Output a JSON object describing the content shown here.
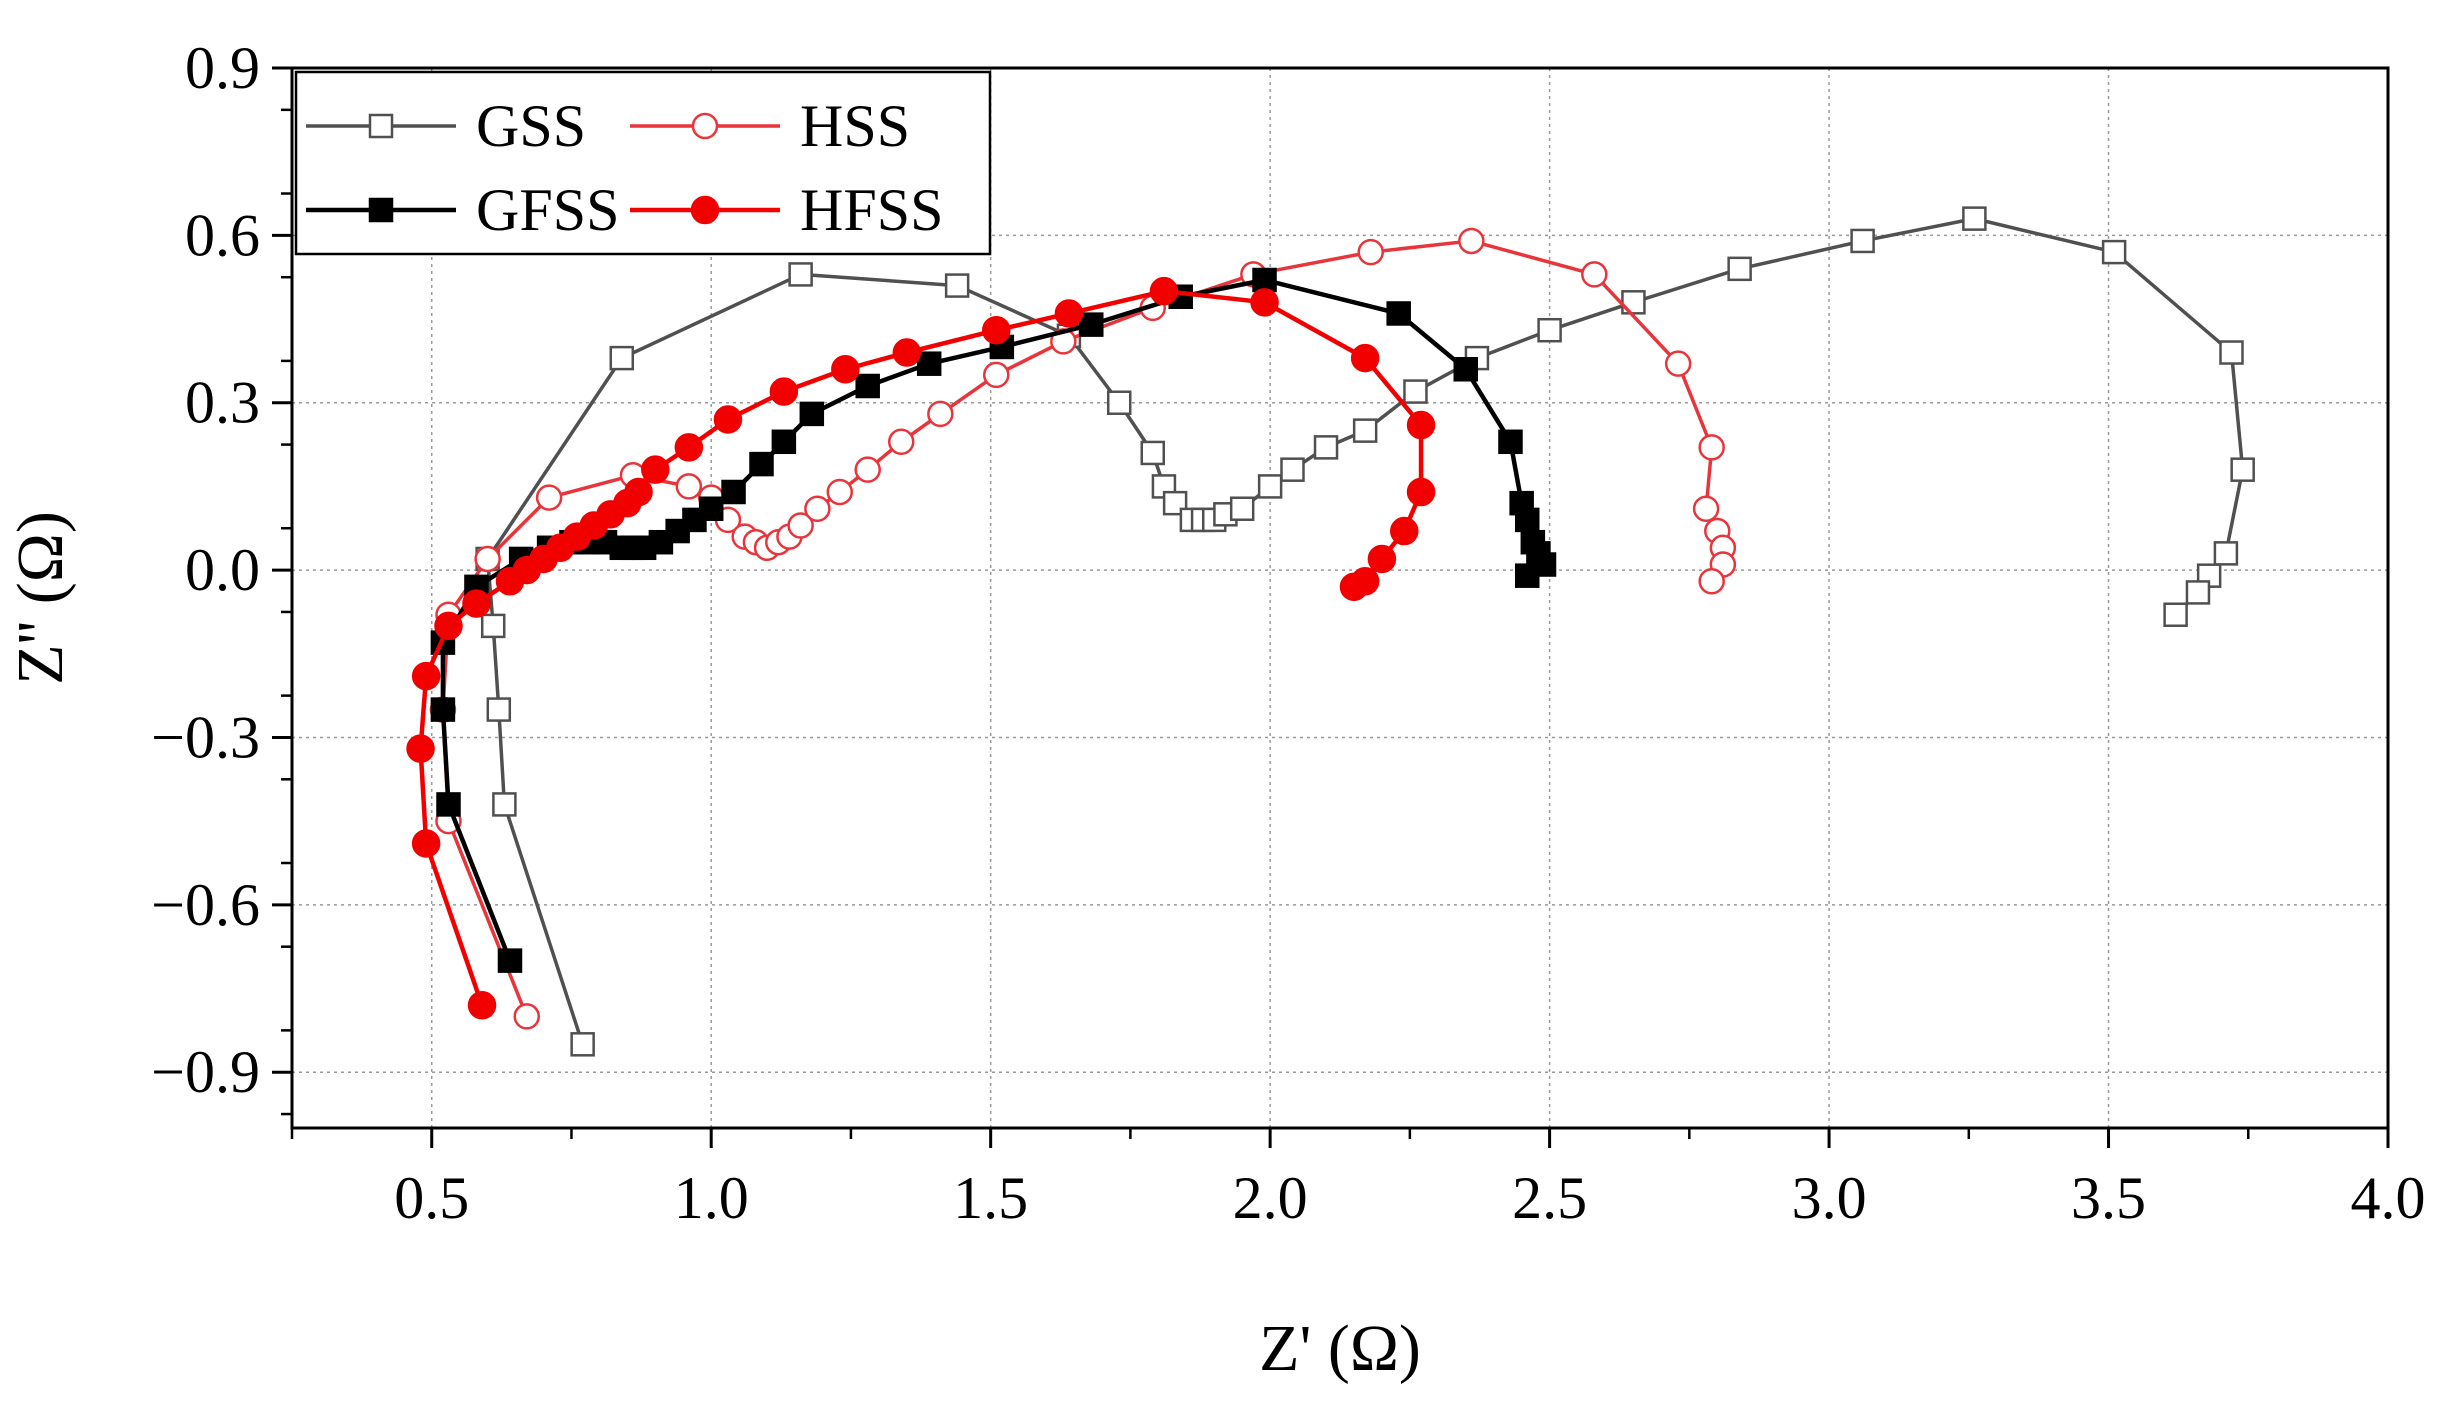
{
  "chart_data": {
    "type": "line",
    "title": "",
    "xlabel": "Z' (Ω)",
    "ylabel": "Z'' (Ω)",
    "xlim": [
      0.25,
      4.0
    ],
    "ylim": [
      -1.0,
      0.9
    ],
    "x_ticks": [
      0.5,
      1.0,
      1.5,
      2.0,
      2.5,
      3.0,
      3.5,
      4.0
    ],
    "x_tick_labels": [
      "0.5",
      "1.0",
      "1.5",
      "2.0",
      "2.5",
      "3.0",
      "3.5",
      "4.0"
    ],
    "y_ticks": [
      0.9,
      0.6,
      0.3,
      0.0,
      -0.3,
      -0.6,
      -0.9
    ],
    "y_tick_labels": [
      "0.9",
      "0.6",
      "0.3",
      "0.0",
      "−0.3",
      "−0.6",
      "−0.9"
    ],
    "grid": true,
    "legend_position": "top-left",
    "series": [
      {
        "name": "GSS",
        "color": "#505050",
        "marker": "square-open",
        "x": [
          0.77,
          0.63,
          0.62,
          0.61,
          0.6,
          0.84,
          1.16,
          1.44,
          1.64,
          1.73,
          1.79,
          1.81,
          1.83,
          1.86,
          1.88,
          1.9,
          1.92,
          1.95,
          2.0,
          2.04,
          2.1,
          2.17,
          2.26,
          2.37,
          2.5,
          2.65,
          2.84,
          3.06,
          3.26,
          3.51,
          3.72,
          3.74,
          3.71,
          3.68,
          3.66,
          3.62
        ],
        "y": [
          -0.85,
          -0.42,
          -0.25,
          -0.1,
          0.02,
          0.38,
          0.53,
          0.51,
          0.42,
          0.3,
          0.21,
          0.15,
          0.12,
          0.09,
          0.09,
          0.09,
          0.1,
          0.11,
          0.15,
          0.18,
          0.22,
          0.25,
          0.32,
          0.38,
          0.43,
          0.48,
          0.54,
          0.59,
          0.63,
          0.57,
          0.39,
          0.18,
          0.03,
          -0.01,
          -0.04,
          -0.08
        ]
      },
      {
        "name": "HSS",
        "color": "#e8343b",
        "marker": "circle-open",
        "x": [
          0.67,
          0.53,
          0.52,
          0.53,
          0.6,
          0.71,
          0.86,
          0.96,
          1.0,
          1.03,
          1.06,
          1.08,
          1.1,
          1.12,
          1.14,
          1.16,
          1.19,
          1.23,
          1.28,
          1.34,
          1.41,
          1.51,
          1.63,
          1.79,
          1.97,
          2.18,
          2.36,
          2.58,
          2.73,
          2.79,
          2.78,
          2.8,
          2.81,
          2.81,
          2.79
        ],
        "y": [
          -0.8,
          -0.45,
          -0.25,
          -0.08,
          0.02,
          0.13,
          0.17,
          0.15,
          0.13,
          0.09,
          0.06,
          0.05,
          0.04,
          0.05,
          0.06,
          0.08,
          0.11,
          0.14,
          0.18,
          0.23,
          0.28,
          0.35,
          0.41,
          0.47,
          0.53,
          0.57,
          0.59,
          0.53,
          0.37,
          0.22,
          0.11,
          0.07,
          0.04,
          0.01,
          -0.02
        ]
      },
      {
        "name": "GFSS",
        "color": "#000000",
        "marker": "square-filled",
        "x": [
          0.64,
          0.53,
          0.52,
          0.52,
          0.58,
          0.66,
          0.71,
          0.75,
          0.78,
          0.81,
          0.84,
          0.86,
          0.88,
          0.91,
          0.94,
          0.97,
          1.0,
          1.04,
          1.09,
          1.13,
          1.18,
          1.28,
          1.39,
          1.52,
          1.68,
          1.84,
          1.99,
          2.23,
          2.35,
          2.43,
          2.45,
          2.46,
          2.47,
          2.48,
          2.49,
          2.46
        ],
        "y": [
          -0.7,
          -0.42,
          -0.25,
          -0.13,
          -0.03,
          0.02,
          0.04,
          0.05,
          0.05,
          0.05,
          0.04,
          0.04,
          0.04,
          0.05,
          0.07,
          0.09,
          0.11,
          0.14,
          0.19,
          0.23,
          0.28,
          0.33,
          0.37,
          0.4,
          0.44,
          0.49,
          0.52,
          0.46,
          0.36,
          0.23,
          0.12,
          0.09,
          0.05,
          0.03,
          0.01,
          -0.01
        ]
      },
      {
        "name": "HFSS",
        "color": "#f20000",
        "marker": "circle-filled",
        "x": [
          0.59,
          0.49,
          0.48,
          0.49,
          0.53,
          0.58,
          0.64,
          0.67,
          0.7,
          0.73,
          0.76,
          0.79,
          0.82,
          0.85,
          0.87,
          0.9,
          0.96,
          1.03,
          1.13,
          1.24,
          1.35,
          1.51,
          1.64,
          1.81,
          1.99,
          2.17,
          2.27,
          2.27,
          2.24,
          2.2,
          2.17,
          2.15
        ],
        "y": [
          -0.78,
          -0.49,
          -0.32,
          -0.19,
          -0.1,
          -0.06,
          -0.02,
          0.0,
          0.02,
          0.04,
          0.06,
          0.08,
          0.1,
          0.12,
          0.14,
          0.18,
          0.22,
          0.27,
          0.32,
          0.36,
          0.39,
          0.43,
          0.46,
          0.5,
          0.48,
          0.38,
          0.26,
          0.14,
          0.07,
          0.02,
          -0.02,
          -0.03
        ]
      }
    ]
  }
}
